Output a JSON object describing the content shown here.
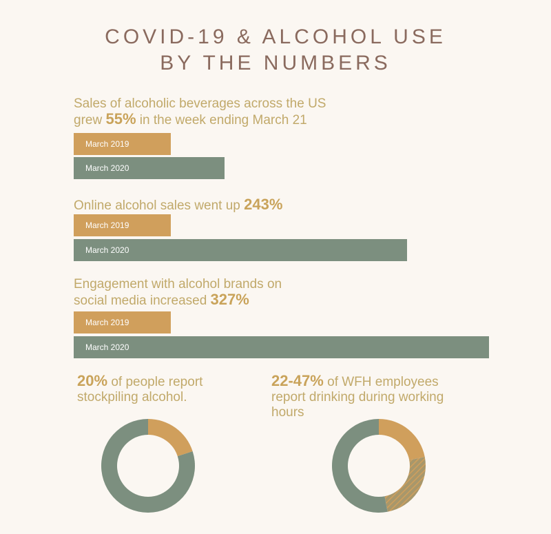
{
  "title": {
    "line1": "COVID-19 & ALCOHOL USE",
    "line2": "BY THE NUMBERS"
  },
  "colors": {
    "background": "#fbf7f2",
    "title": "#8a6a5e",
    "text_gold": "#c1a96a",
    "highlight": "#c9a35a",
    "bar_2019": "#d09f5c",
    "bar_2020": "#7c8f7f"
  },
  "chart_data": [
    {
      "type": "bar",
      "orientation": "horizontal",
      "title_lines": [
        "Sales of alcoholic beverages across the US",
        "grew ",
        "55%",
        " in the week ending March 21"
      ],
      "categories": [
        "March 2019",
        "March 2020"
      ],
      "values": [
        100,
        155
      ],
      "xlim": [
        0,
        427
      ]
    },
    {
      "type": "bar",
      "orientation": "horizontal",
      "title_lines": [
        "Online alcohol sales went up ",
        "243%"
      ],
      "categories": [
        "March 2019",
        "March 2020"
      ],
      "values": [
        100,
        343
      ],
      "xlim": [
        0,
        427
      ]
    },
    {
      "type": "bar",
      "orientation": "horizontal",
      "title_lines": [
        "Engagement with alcohol brands on",
        "social media increased ",
        "327%"
      ],
      "categories": [
        "March 2019",
        "March 2020"
      ],
      "values": [
        100,
        427
      ],
      "xlim": [
        0,
        427
      ]
    },
    {
      "type": "pie",
      "style": "donut",
      "text": [
        "20%",
        " of people report",
        "stockpiling alcohol."
      ],
      "slices": [
        {
          "value": 20,
          "color": "#d09f5c",
          "pattern": "solid"
        },
        {
          "value": 80,
          "color": "#7c8f7f",
          "pattern": "solid"
        }
      ]
    },
    {
      "type": "pie",
      "style": "donut",
      "text": [
        "22-47%",
        " of WFH employees",
        "report drinking during working",
        "hours"
      ],
      "slices": [
        {
          "value": 22,
          "color": "#d09f5c",
          "pattern": "solid"
        },
        {
          "value": 25,
          "color": "#d09f5c",
          "pattern": "hatched"
        },
        {
          "value": 53,
          "color": "#7c8f7f",
          "pattern": "solid"
        }
      ]
    }
  ]
}
